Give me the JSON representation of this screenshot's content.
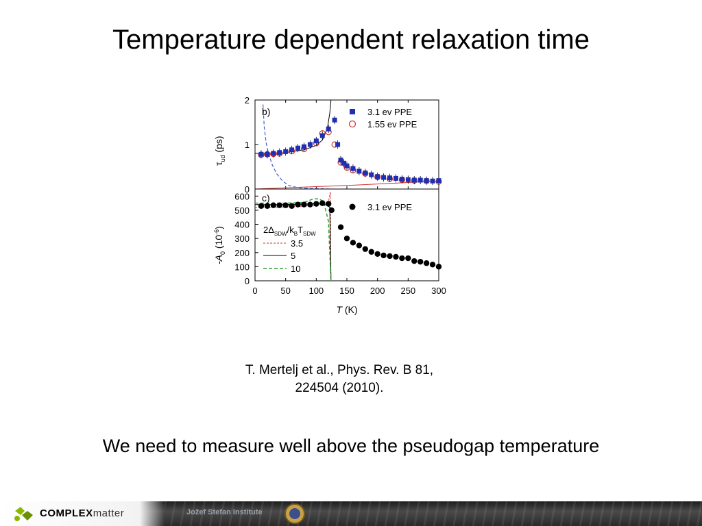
{
  "slide": {
    "title": "Temperature dependent relaxation time",
    "citation_line1": "T. Mertelj et al., Phys. Rev. B 81,",
    "citation_line2": "224504 (2010).",
    "conclusion": "We need to measure well above the pseudogap temperature"
  },
  "footer": {
    "logo_bold": "COMPLEX",
    "logo_thin": "matter",
    "institute": "Jožef Stefan Institute"
  },
  "chart_data": [
    {
      "type": "scatter",
      "panel_label": "b)",
      "ylabel": "τ_ud (ps)",
      "ylabel_main": "τ",
      "ylabel_sub": "ud",
      "ylabel_unit": " (ps)",
      "xlim": [
        0,
        300
      ],
      "ylim": [
        0,
        2
      ],
      "yticks": [
        "0",
        "1",
        "2"
      ],
      "legend_position": "top-right",
      "series": [
        {
          "name": "3.1 ev PPE",
          "marker": "filled-square",
          "color": "#1f2fb4",
          "points": [
            [
              10,
              0.78
            ],
            [
              20,
              0.78
            ],
            [
              30,
              0.8
            ],
            [
              40,
              0.82
            ],
            [
              50,
              0.84
            ],
            [
              60,
              0.88
            ],
            [
              70,
              0.92
            ],
            [
              80,
              0.95
            ],
            [
              90,
              1.0
            ],
            [
              100,
              1.08
            ],
            [
              110,
              1.2
            ],
            [
              120,
              1.35
            ],
            [
              130,
              1.55
            ],
            [
              135,
              1.0
            ],
            [
              140,
              0.65
            ],
            [
              145,
              0.58
            ],
            [
              150,
              0.52
            ],
            [
              160,
              0.46
            ],
            [
              170,
              0.4
            ],
            [
              180,
              0.36
            ],
            [
              190,
              0.32
            ],
            [
              200,
              0.28
            ],
            [
              210,
              0.26
            ],
            [
              220,
              0.25
            ],
            [
              230,
              0.24
            ],
            [
              240,
              0.22
            ],
            [
              250,
              0.21
            ],
            [
              260,
              0.2
            ],
            [
              270,
              0.2
            ],
            [
              280,
              0.19
            ],
            [
              290,
              0.18
            ],
            [
              300,
              0.19
            ]
          ]
        },
        {
          "name": "1.55 ev PPE",
          "marker": "open-circle",
          "color": "#d03030",
          "points": [
            [
              10,
              0.77
            ],
            [
              20,
              0.78
            ],
            [
              30,
              0.79
            ],
            [
              40,
              0.8
            ],
            [
              60,
              0.85
            ],
            [
              80,
              0.9
            ],
            [
              100,
              1.03
            ],
            [
              110,
              1.25
            ],
            [
              120,
              1.28
            ],
            [
              130,
              1.0
            ],
            [
              140,
              0.6
            ],
            [
              150,
              0.48
            ],
            [
              160,
              0.42
            ],
            [
              180,
              0.35
            ],
            [
              200,
              0.27
            ],
            [
              220,
              0.23
            ],
            [
              240,
              0.21
            ],
            [
              260,
              0.19
            ],
            [
              280,
              0.18
            ],
            [
              300,
              0.17
            ]
          ]
        }
      ],
      "fit_curves": [
        {
          "style": "solid-black",
          "points": [
            [
              0,
              0.8
            ],
            [
              40,
              0.8
            ],
            [
              80,
              0.88
            ],
            [
              100,
              0.98
            ],
            [
              110,
              1.1
            ],
            [
              118,
              1.35
            ],
            [
              122,
              1.7
            ],
            [
              124,
              2.0
            ]
          ]
        },
        {
          "style": "dashed-blue",
          "points": [
            [
              13,
              1.9
            ],
            [
              15,
              1.4
            ],
            [
              18,
              1.05
            ],
            [
              22,
              0.8
            ],
            [
              28,
              0.55
            ],
            [
              35,
              0.35
            ],
            [
              45,
              0.18
            ],
            [
              55,
              0.08
            ],
            [
              70,
              0.03
            ],
            [
              90,
              0.01
            ],
            [
              126,
              0.0
            ]
          ]
        },
        {
          "style": "solid-red",
          "points": [
            [
              0,
              0.0
            ],
            [
              150,
              0.08
            ],
            [
              300,
              0.18
            ]
          ]
        }
      ]
    },
    {
      "type": "scatter",
      "panel_label": "c)",
      "ylabel": "-A_0 (10^-6)",
      "ylabel_main": "-A",
      "ylabel_sub": "0",
      "ylabel_unit": " (10",
      "ylabel_sup": "-6",
      "ylabel_close": ")",
      "xlabel": "T (K)",
      "xlabel_var": "T",
      "xlabel_unit": " (K)",
      "xlim": [
        0,
        300
      ],
      "ylim": [
        0,
        650
      ],
      "xticks": [
        "0",
        "50",
        "100",
        "150",
        "200",
        "250",
        "300"
      ],
      "yticks": [
        "0",
        "100",
        "200",
        "300",
        "400",
        "500",
        "600"
      ],
      "legend_position": "top-right",
      "series": [
        {
          "name": "3.1 ev PPE",
          "marker": "filled-circle",
          "color": "#000000",
          "points": [
            [
              10,
              530
            ],
            [
              20,
              530
            ],
            [
              30,
              535
            ],
            [
              40,
              535
            ],
            [
              50,
              535
            ],
            [
              60,
              530
            ],
            [
              70,
              540
            ],
            [
              80,
              540
            ],
            [
              90,
              540
            ],
            [
              100,
              545
            ],
            [
              110,
              550
            ],
            [
              120,
              545
            ],
            [
              125,
              500
            ],
            [
              140,
              380
            ],
            [
              150,
              300
            ],
            [
              160,
              270
            ],
            [
              170,
              250
            ],
            [
              180,
              225
            ],
            [
              190,
              205
            ],
            [
              200,
              190
            ],
            [
              210,
              180
            ],
            [
              220,
              175
            ],
            [
              230,
              170
            ],
            [
              240,
              160
            ],
            [
              250,
              160
            ],
            [
              260,
              140
            ],
            [
              270,
              135
            ],
            [
              280,
              125
            ],
            [
              290,
              115
            ],
            [
              300,
              100
            ]
          ]
        }
      ],
      "model_legend_title": "2Δ_SDW/k_B T_SDW",
      "model_legend_parts": {
        "p1": "2Δ",
        "s1": "SDW",
        "p2": "/k",
        "s2": "B",
        "p3": "T",
        "s3": "SDW"
      },
      "model_curves": [
        {
          "name": "3.5",
          "style": "dashed-red",
          "points": [
            [
              0,
              520
            ],
            [
              50,
              520
            ],
            [
              100,
              535
            ],
            [
              112,
              545
            ],
            [
              120,
              560
            ],
            [
              123,
              630
            ],
            [
              124,
              0
            ]
          ]
        },
        {
          "name": "5",
          "style": "solid-black",
          "points": [
            [
              0,
              540
            ],
            [
              50,
              540
            ],
            [
              90,
              545
            ],
            [
              110,
              545
            ],
            [
              118,
              535
            ],
            [
              122,
              520
            ],
            [
              124,
              0
            ]
          ]
        },
        {
          "name": "10",
          "style": "dashed-green",
          "points": [
            [
              0,
              550
            ],
            [
              50,
              550
            ],
            [
              80,
              555
            ],
            [
              95,
              580
            ],
            [
              105,
              580
            ],
            [
              112,
              560
            ],
            [
              120,
              420
            ],
            [
              123,
              100
            ],
            [
              124,
              0
            ]
          ]
        }
      ]
    }
  ]
}
